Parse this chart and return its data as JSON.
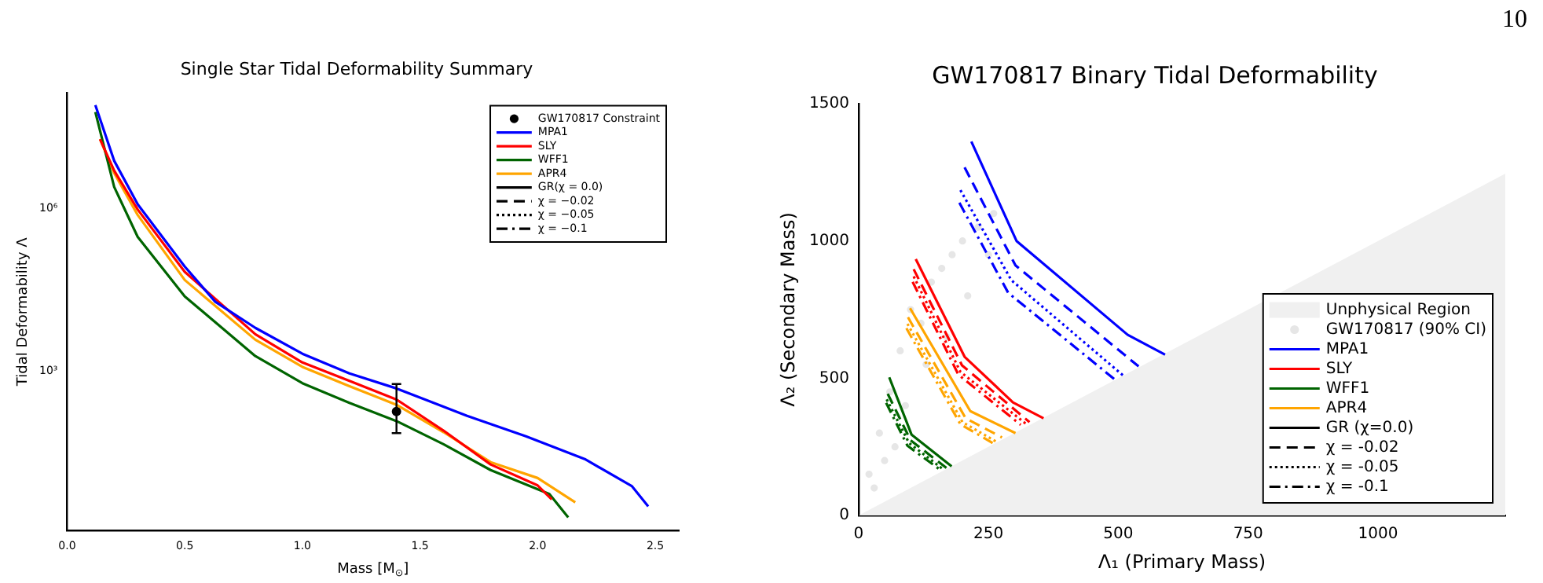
{
  "chart_data": [
    {
      "type": "line",
      "title": "Single Star Tidal Deformability Summary",
      "xlabel": "Mass [M$_{⊙}$]",
      "ylabel": "Tidal Deformability Λ",
      "log": "y",
      "grid": false,
      "legend": "top right",
      "xlim": [
        0,
        2.6
      ],
      "ylim": [
        1.15,
        135000000
      ],
      "xticks": [
        {
          "value": 0,
          "label": "0.0"
        },
        0.5,
        {
          "value": 1,
          "label": "1.0"
        },
        1.5,
        {
          "value": 2,
          "label": "2.0"
        },
        2.5
      ],
      "yticks": [
        {
          "value": 1000,
          "label": "10³"
        },
        {
          "value": 1000000,
          "label": "10⁶"
        }
      ],
      "series": [
        {
          "name": "GW170817 Constraint",
          "type": "scatter",
          "marker": "circle",
          "color": "#000000",
          "x": [
            1.4
          ],
          "values": [
            180
          ],
          "errors": [
            [
              72,
              580
            ]
          ]
        },
        {
          "name": "MPA1",
          "color": "#0000ff",
          "line_style": "solid",
          "x": [
            0.12,
            0.2,
            0.3,
            0.5,
            0.63,
            0.8,
            1.0,
            1.2,
            1.4,
            1.7,
            1.95,
            2.2,
            2.4,
            2.47
          ],
          "values": [
            81000000,
            7600000,
            1200000,
            85000,
            19000,
            6300,
            2100,
            910,
            480,
            150,
            63,
            24,
            7.6,
            3.2
          ]
        },
        {
          "name": "SLY",
          "color": "#ff0000",
          "line_style": "solid",
          "x": [
            0.14,
            0.2,
            0.3,
            0.5,
            0.8,
            1.0,
            1.2,
            1.4,
            1.6,
            1.8,
            2.0,
            2.06
          ],
          "values": [
            19000000,
            5000000,
            960000,
            68000,
            4800,
            1450,
            660,
            300,
            80,
            19,
            7.8,
            4.3
          ]
        },
        {
          "name": "WFF1",
          "color": "#006400",
          "line_style": "solid",
          "x": [
            0.12,
            0.2,
            0.3,
            0.5,
            0.8,
            1.0,
            1.2,
            1.4,
            1.6,
            1.8,
            2.05,
            2.13
          ],
          "values": [
            60000000,
            2500000,
            300000,
            24000,
            1900,
            600,
            260,
            120,
            45,
            15,
            5.4,
            2.0
          ]
        },
        {
          "name": "APR4",
          "color": "#ffa500",
          "line_style": "solid",
          "x": [
            0.14,
            0.2,
            0.3,
            0.5,
            0.8,
            1.0,
            1.2,
            1.4,
            1.6,
            1.8,
            2.0,
            2.16
          ],
          "values": [
            19000000,
            4500000,
            760000,
            48000,
            3800,
            1200,
            530,
            240,
            75,
            21,
            10.7,
            3.8
          ]
        },
        {
          "name": "GR(χ = 0.0)",
          "color": "#000000",
          "line_style": "solid"
        },
        {
          "name": "χ = −0.02",
          "color": "#000000",
          "line_style": "dashed"
        },
        {
          "name": "χ = −0.05",
          "color": "#000000",
          "line_style": "dotted"
        },
        {
          "name": "χ = −0.1",
          "color": "#000000",
          "line_style": "dashdot"
        }
      ]
    },
    {
      "type": "line",
      "title": "GW170817 Binary Tidal Deformability",
      "xlabel": "Λ₁ (Primary Mass)",
      "ylabel": "Λ₂ (Secondary Mass)",
      "grid": false,
      "legend": "bottom right",
      "xlim": [
        0,
        1245
      ],
      "ylim": [
        0,
        1500
      ],
      "xticks": [
        0,
        250,
        500,
        750,
        1000
      ],
      "yticks": [
        0,
        500,
        1000,
        1500
      ],
      "annotations": [
        "10"
      ],
      "series": [
        {
          "name": "Unphysical Region",
          "type": "area",
          "color": "#f0f0f0",
          "x": [
            0,
            1245
          ],
          "values": [
            0,
            1245
          ]
        },
        {
          "name": "GW170817 (90% CI)",
          "type": "scatter",
          "marker": "circle",
          "color": "#e6e6e6",
          "x": [
            20,
            40,
            60,
            80,
            100,
            120,
            140,
            160,
            180,
            200,
            230,
            260,
            50,
            90,
            130,
            170,
            210,
            250,
            30,
            70
          ],
          "values": [
            150,
            300,
            450,
            600,
            750,
            700,
            850,
            900,
            950,
            1000,
            1050,
            1100,
            200,
            400,
            550,
            650,
            800,
            950,
            100,
            250
          ]
        },
        {
          "name": "MPA1",
          "color": "#0000ff",
          "line_style": "solid",
          "x": [
            217,
            304,
            518,
            590
          ],
          "values": [
            1362,
            1000,
            658,
            586
          ]
        },
        {
          "name": "SLY",
          "color": "#ff0000",
          "line_style": "solid",
          "x": [
            110,
            204,
            297,
            356
          ],
          "values": [
            934,
            578,
            412,
            354
          ]
        },
        {
          "name": "WFF1",
          "color": "#006400",
          "line_style": "solid",
          "x": [
            59,
            102,
            179
          ],
          "values": [
            503,
            294,
            179
          ]
        },
        {
          "name": "APR4",
          "color": "#ffa500",
          "line_style": "solid",
          "x": [
            99,
            215,
            302
          ],
          "values": [
            755,
            380,
            300
          ]
        },
        {
          "name": "GR (χ=0.0)",
          "color": "#000000",
          "line_style": "solid"
        },
        {
          "name": "χ = -0.02",
          "color": "#000000",
          "line_style": "dashed"
        },
        {
          "name": "χ = -0.05",
          "color": "#000000",
          "line_style": "dotted"
        },
        {
          "name": "χ = -0.1",
          "color": "#000000",
          "line_style": "dashdot"
        },
        {
          "color": "#0000ff",
          "line_style": "dashed",
          "x": [
            204,
            302,
            539
          ],
          "values": [
            1268,
            911,
            543
          ]
        },
        {
          "color": "#0000ff",
          "line_style": "dotted",
          "x": [
            196,
            294,
            511
          ],
          "values": [
            1185,
            857,
            507
          ]
        },
        {
          "color": "#0000ff",
          "line_style": "dashdot",
          "x": [
            194,
            288,
            496
          ],
          "values": [
            1139,
            811,
            491
          ]
        },
        {
          "color": "#ff0000",
          "line_style": "dashed",
          "x": [
            106,
            199,
            329
          ],
          "values": [
            897,
            547,
            340
          ]
        },
        {
          "color": "#ff0000",
          "line_style": "dotted",
          "x": [
            106,
            196,
            322
          ],
          "values": [
            871,
            523,
            334
          ]
        },
        {
          "color": "#ff0000",
          "line_style": "dashdot",
          "x": [
            104,
            192,
            312
          ],
          "values": [
            851,
            513,
            330
          ]
        },
        {
          "color": "#006400",
          "line_style": "dashed",
          "x": [
            56,
            100,
            169
          ],
          "values": [
            443,
            274,
            173
          ]
        },
        {
          "color": "#006400",
          "line_style": "dotted",
          "x": [
            54,
            97,
            162
          ],
          "values": [
            423,
            264,
            169
          ]
        },
        {
          "color": "#006400",
          "line_style": "dashdot",
          "x": [
            53,
            94,
            158
          ],
          "values": [
            410,
            254,
            165
          ]
        },
        {
          "color": "#ffa500",
          "line_style": "dashed",
          "x": [
            95,
            206,
            276
          ],
          "values": [
            722,
            354,
            284
          ]
        },
        {
          "color": "#ffa500",
          "line_style": "dotted",
          "x": [
            94,
            200,
            266
          ],
          "values": [
            698,
            340,
            268
          ]
        },
        {
          "color": "#ffa500",
          "line_style": "dashdot",
          "x": [
            92,
            196,
            258
          ],
          "values": [
            682,
            332,
            264
          ]
        }
      ]
    }
  ]
}
